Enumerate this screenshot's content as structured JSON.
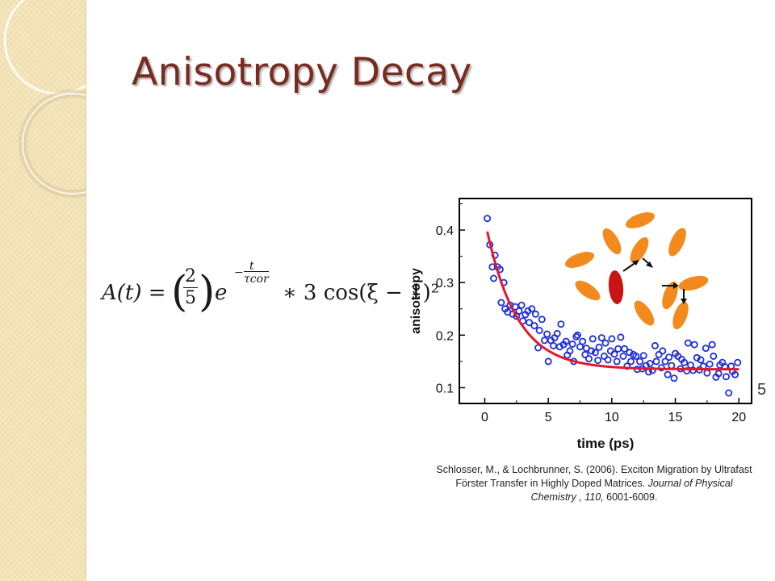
{
  "slide": {
    "title": "Anisotropy Decay",
    "slide_number": "5",
    "colors": {
      "title": "#7a2b1f",
      "sidebar": "#f5e6bd"
    }
  },
  "equation": {
    "lhs": "A(t) =",
    "fraction_numerator": "2",
    "fraction_denominator": "5",
    "base": "e",
    "exponent_numerator": "t",
    "exponent_denominator": "τcor",
    "rest": "∗ 3 cos(ξ − 1)²"
  },
  "citation": {
    "line1": "Schlosser, M., & Lochbrunner, S. (2006). Exciton Migration by Ultrafast",
    "line2_a": "Förster Transfer in Highly Doped Matrices. ",
    "line2_b": "Journal of Physical",
    "line3_a": "Chemistry , 110,",
    "line3_b": " 6001-6009."
  },
  "chart_data": {
    "type": "scatter",
    "title": "",
    "xlabel": "time (ps)",
    "ylabel": "anisotropy",
    "xlim": [
      -2,
      21
    ],
    "ylim": [
      0.07,
      0.46
    ],
    "xticks": [
      0,
      5,
      10,
      15,
      20
    ],
    "yticks": [
      0.1,
      0.2,
      0.3,
      0.4
    ],
    "xtick_labels": [
      "0",
      "5",
      "10",
      "15",
      "20"
    ],
    "ytick_labels": [
      "0.1",
      "0.2",
      "0.3",
      "0.4"
    ],
    "grid": false,
    "series": [
      {
        "kind": "scatter",
        "color": "#1f2fd8",
        "points": [
          [
            0.2,
            0.422
          ],
          [
            0.4,
            0.372
          ],
          [
            0.6,
            0.33
          ],
          [
            0.7,
            0.308
          ],
          [
            0.8,
            0.352
          ],
          [
            1.0,
            0.33
          ],
          [
            1.2,
            0.325
          ],
          [
            1.3,
            0.262
          ],
          [
            1.5,
            0.3
          ],
          [
            1.6,
            0.25
          ],
          [
            1.8,
            0.244
          ],
          [
            2.0,
            0.257
          ],
          [
            2.2,
            0.24
          ],
          [
            2.4,
            0.254
          ],
          [
            2.5,
            0.236
          ],
          [
            2.7,
            0.246
          ],
          [
            2.9,
            0.257
          ],
          [
            3.0,
            0.227
          ],
          [
            3.2,
            0.239
          ],
          [
            3.4,
            0.246
          ],
          [
            3.5,
            0.224
          ],
          [
            3.7,
            0.25
          ],
          [
            3.9,
            0.218
          ],
          [
            4.0,
            0.24
          ],
          [
            4.2,
            0.176
          ],
          [
            4.3,
            0.209
          ],
          [
            4.5,
            0.23
          ],
          [
            4.7,
            0.19
          ],
          [
            4.9,
            0.202
          ],
          [
            5.0,
            0.15
          ],
          [
            5.2,
            0.19
          ],
          [
            5.4,
            0.18
          ],
          [
            5.5,
            0.195
          ],
          [
            5.7,
            0.203
          ],
          [
            5.9,
            0.178
          ],
          [
            6.0,
            0.221
          ],
          [
            6.2,
            0.182
          ],
          [
            6.4,
            0.188
          ],
          [
            6.5,
            0.162
          ],
          [
            6.7,
            0.17
          ],
          [
            6.9,
            0.183
          ],
          [
            7.0,
            0.15
          ],
          [
            7.2,
            0.197
          ],
          [
            7.3,
            0.2
          ],
          [
            7.5,
            0.178
          ],
          [
            7.7,
            0.188
          ],
          [
            7.9,
            0.163
          ],
          [
            8.0,
            0.175
          ],
          [
            8.2,
            0.155
          ],
          [
            8.4,
            0.17
          ],
          [
            8.5,
            0.193
          ],
          [
            8.7,
            0.167
          ],
          [
            8.9,
            0.152
          ],
          [
            9.0,
            0.177
          ],
          [
            9.2,
            0.195
          ],
          [
            9.4,
            0.16
          ],
          [
            9.5,
            0.185
          ],
          [
            9.7,
            0.153
          ],
          [
            9.9,
            0.17
          ],
          [
            10.0,
            0.193
          ],
          [
            10.2,
            0.164
          ],
          [
            10.4,
            0.15
          ],
          [
            10.5,
            0.174
          ],
          [
            10.7,
            0.196
          ],
          [
            10.9,
            0.16
          ],
          [
            11.0,
            0.174
          ],
          [
            11.2,
            0.141
          ],
          [
            11.4,
            0.167
          ],
          [
            11.5,
            0.15
          ],
          [
            11.7,
            0.163
          ],
          [
            11.9,
            0.16
          ],
          [
            12.0,
            0.135
          ],
          [
            12.2,
            0.15
          ],
          [
            12.4,
            0.136
          ],
          [
            12.5,
            0.161
          ],
          [
            12.7,
            0.142
          ],
          [
            12.9,
            0.13
          ],
          [
            13.0,
            0.146
          ],
          [
            13.2,
            0.133
          ],
          [
            13.4,
            0.18
          ],
          [
            13.5,
            0.15
          ],
          [
            13.7,
            0.163
          ],
          [
            13.9,
            0.138
          ],
          [
            14.0,
            0.17
          ],
          [
            14.2,
            0.15
          ],
          [
            14.4,
            0.125
          ],
          [
            14.5,
            0.158
          ],
          [
            14.7,
            0.142
          ],
          [
            14.9,
            0.118
          ],
          [
            15.0,
            0.165
          ],
          [
            15.2,
            0.16
          ],
          [
            15.4,
            0.136
          ],
          [
            15.5,
            0.154
          ],
          [
            15.7,
            0.148
          ],
          [
            15.9,
            0.132
          ],
          [
            16.0,
            0.185
          ],
          [
            16.2,
            0.143
          ],
          [
            16.4,
            0.133
          ],
          [
            16.5,
            0.182
          ],
          [
            16.7,
            0.157
          ],
          [
            16.9,
            0.134
          ],
          [
            17.0,
            0.153
          ],
          [
            17.2,
            0.141
          ],
          [
            17.4,
            0.175
          ],
          [
            17.5,
            0.128
          ],
          [
            17.7,
            0.145
          ],
          [
            17.9,
            0.182
          ],
          [
            18.0,
            0.16
          ],
          [
            18.2,
            0.12
          ],
          [
            18.4,
            0.127
          ],
          [
            18.5,
            0.143
          ],
          [
            18.7,
            0.148
          ],
          [
            18.9,
            0.14
          ],
          [
            19.0,
            0.121
          ],
          [
            19.2,
            0.09
          ],
          [
            19.4,
            0.141
          ],
          [
            19.5,
            0.131
          ],
          [
            19.7,
            0.125
          ],
          [
            19.9,
            0.148
          ]
        ]
      },
      {
        "kind": "fit-line",
        "color": "#e0192c",
        "model": {
          "offset": 0.135,
          "amplitude": 0.285,
          "tau": 2.4,
          "x_start": 0.2,
          "x_end": 20.0
        }
      }
    ],
    "inset": {
      "description": "orange ellipsoidal molecules with one red excited molecule; arrows show exciton hopping",
      "colors": {
        "molecule": "#f28a1e",
        "excited": "#c81414",
        "arrow": "#111111"
      }
    }
  }
}
